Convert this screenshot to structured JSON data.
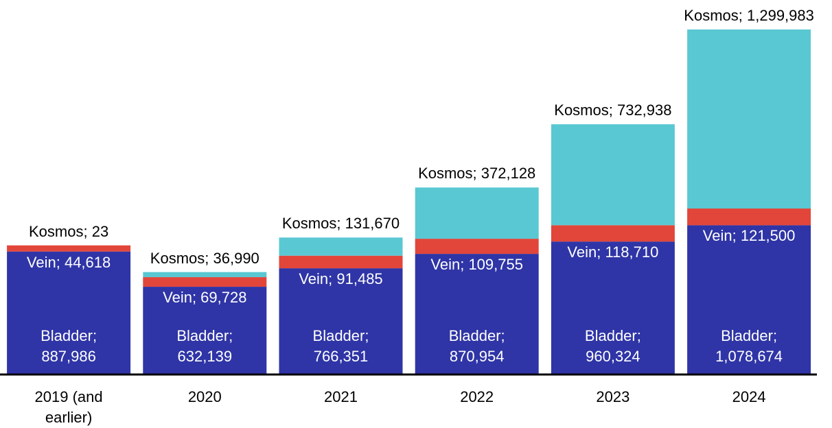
{
  "chart_data": {
    "type": "stacked_bar",
    "categories": [
      "2019 (and earlier)",
      "2020",
      "2021",
      "2022",
      "2023",
      "2024"
    ],
    "series": [
      {
        "name": "Bladder",
        "color": "#2f35a6",
        "values": [
          887986,
          632139,
          766351,
          870954,
          960324,
          1078674
        ],
        "value_labels": [
          "Bladder; 887,986",
          "Bladder; 632,139",
          "Bladder; 766,351",
          "Bladder; 870,954",
          "Bladder; 960,324",
          "Bladder; 1,078,674"
        ]
      },
      {
        "name": "Vein",
        "color": "#e2463a",
        "values": [
          44618,
          69728,
          91485,
          109755,
          118710,
          121500
        ],
        "value_labels": [
          "Vein; 44,618",
          "Vein; 69,728",
          "Vein; 91,485",
          "Vein; 109,755",
          "Vein; 118,710",
          "Vein; 121,500"
        ]
      },
      {
        "name": "Kosmos",
        "color": "#5ac8d2",
        "values": [
          23,
          36990,
          131670,
          372128,
          732938,
          1299983
        ],
        "value_labels": [
          "Kosmos; 23",
          "Kosmos; 36,990",
          "Kosmos; 131,670",
          "Kosmos; 372,128",
          "Kosmos; 732,938",
          "Kosmos; 1,299,983"
        ]
      }
    ],
    "ylim": [
      0,
      2500000
    ]
  }
}
